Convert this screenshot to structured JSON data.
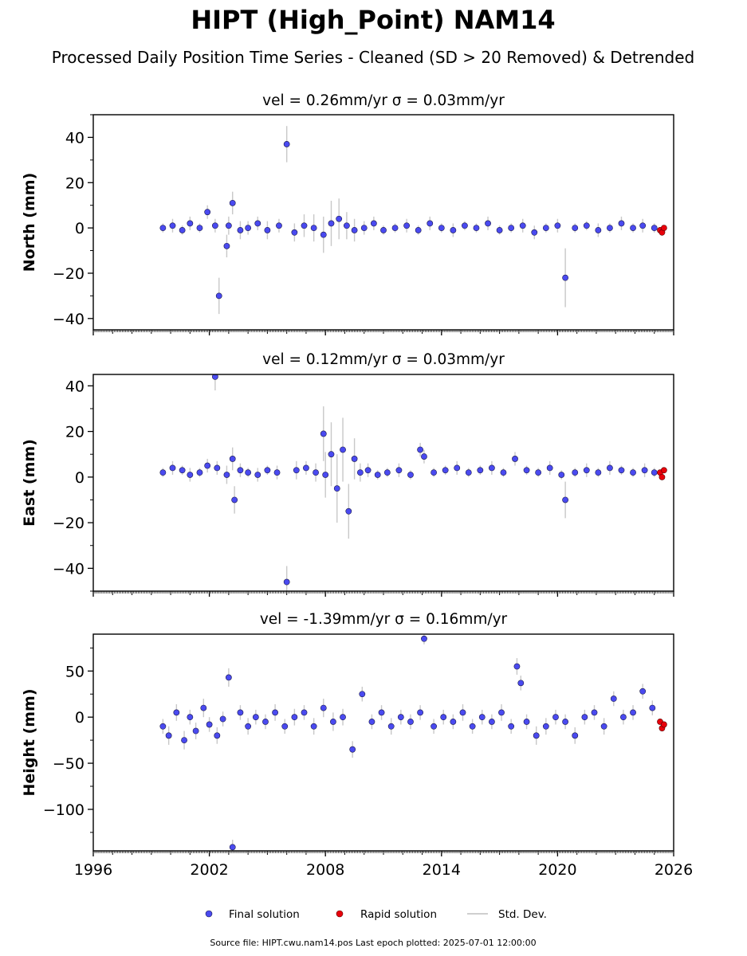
{
  "figure": {
    "title": "HIPT (High_Point) NAM14",
    "subtitle": "Processed Daily Position Time Series - Cleaned (SD > 20 Removed) & Detrended",
    "source_note": "Source file: HIPT.cwu.nam14.pos  Last epoch plotted: 2025-07-01 12:00:00"
  },
  "legend": {
    "final": "Final solution",
    "rapid": "Rapid solution",
    "std": "Std. Dev."
  },
  "colors": {
    "final": "#4a4af0",
    "rapid": "#e8000b",
    "std": "#c8c8c8",
    "axis": "#000000"
  },
  "chart_data": [
    {
      "type": "scatter",
      "title": "vel = 0.26mm/yr   σ = 0.03mm/yr",
      "xlabel": "",
      "ylabel": "North (mm)",
      "xlim": [
        1996,
        2026
      ],
      "ylim": [
        -45,
        50
      ],
      "yticks": [
        40,
        20,
        0,
        -20,
        -40
      ],
      "ytick_labels": [
        "40",
        "20",
        "0",
        "−20",
        "−40"
      ],
      "xticks": [
        1996,
        2002,
        2008,
        2014,
        2020,
        2026
      ],
      "xtick_labels": [],
      "series": [
        {
          "name": "Final solution",
          "kind": "final",
          "x": [
            1999.6,
            2000.1,
            2000.6,
            2001.0,
            2001.5,
            2001.9,
            2002.3,
            2002.5,
            2002.9,
            2003.0,
            2003.2,
            2003.6,
            2004.0,
            2004.5,
            2005.0,
            2005.6,
            2006.0,
            2006.4,
            2006.9,
            2007.4,
            2007.9,
            2008.3,
            2008.7,
            2009.1,
            2009.5,
            2010.0,
            2010.5,
            2011.0,
            2011.6,
            2012.2,
            2012.8,
            2013.4,
            2014.0,
            2014.6,
            2015.2,
            2015.8,
            2016.4,
            2017.0,
            2017.6,
            2018.2,
            2018.8,
            2019.4,
            2020.0,
            2020.4,
            2020.9,
            2021.5,
            2022.1,
            2022.7,
            2023.3,
            2023.9,
            2024.4,
            2025.0
          ],
          "y": [
            0,
            1,
            -1,
            2,
            0,
            7,
            1,
            -30,
            -8,
            1,
            11,
            -1,
            0,
            2,
            -1,
            1,
            37,
            -2,
            1,
            0,
            -3,
            2,
            4,
            1,
            -1,
            0,
            2,
            -1,
            0,
            1,
            -1,
            2,
            0,
            -1,
            1,
            0,
            2,
            -1,
            0,
            1,
            -2,
            0,
            1,
            -22,
            0,
            1,
            -1,
            0,
            2,
            0,
            1,
            0
          ],
          "sd": [
            2,
            3,
            2,
            3,
            2,
            3,
            3,
            8,
            5,
            4,
            5,
            4,
            3,
            3,
            4,
            3,
            8,
            4,
            5,
            6,
            8,
            10,
            9,
            6,
            5,
            3,
            3,
            2,
            2,
            3,
            2,
            3,
            2,
            3,
            2,
            2,
            3,
            2,
            2,
            3,
            3,
            2,
            3,
            13,
            2,
            2,
            3,
            2,
            3,
            2,
            3,
            2
          ]
        },
        {
          "name": "Rapid solution",
          "kind": "rapid",
          "x": [
            2025.3,
            2025.4,
            2025.5
          ],
          "y": [
            -1,
            -2,
            0
          ],
          "sd": [
            1,
            1,
            1
          ]
        }
      ]
    },
    {
      "type": "scatter",
      "title": "vel = 0.12mm/yr   σ = 0.03mm/yr",
      "xlabel": "",
      "ylabel": "East (mm)",
      "xlim": [
        1996,
        2026
      ],
      "ylim": [
        -50,
        45
      ],
      "yticks": [
        40,
        20,
        0,
        -20,
        -40
      ],
      "ytick_labels": [
        "40",
        "20",
        "0",
        "−20",
        "−40"
      ],
      "xticks": [
        1996,
        2002,
        2008,
        2014,
        2020,
        2026
      ],
      "xtick_labels": [],
      "series": [
        {
          "name": "Final solution",
          "kind": "final",
          "x": [
            1999.6,
            2000.1,
            2000.6,
            2001.0,
            2001.5,
            2001.9,
            2002.3,
            2002.4,
            2002.9,
            2003.2,
            2003.3,
            2003.6,
            2004.0,
            2004.5,
            2005.0,
            2005.5,
            2006.0,
            2006.5,
            2007.0,
            2007.5,
            2007.9,
            2008.0,
            2008.3,
            2008.6,
            2008.9,
            2009.2,
            2009.5,
            2009.8,
            2010.2,
            2010.7,
            2011.2,
            2011.8,
            2012.4,
            2012.9,
            2013.1,
            2013.6,
            2014.2,
            2014.8,
            2015.4,
            2016.0,
            2016.6,
            2017.2,
            2017.8,
            2018.4,
            2019.0,
            2019.6,
            2020.2,
            2020.4,
            2020.9,
            2021.5,
            2022.1,
            2022.7,
            2023.3,
            2023.9,
            2024.5,
            2025.0
          ],
          "y": [
            2,
            4,
            3,
            1,
            2,
            5,
            44,
            4,
            1,
            8,
            -10,
            3,
            2,
            1,
            3,
            2,
            -46,
            3,
            4,
            2,
            19,
            1,
            10,
            -5,
            12,
            -15,
            8,
            2,
            3,
            1,
            2,
            3,
            1,
            12,
            9,
            2,
            3,
            4,
            2,
            3,
            4,
            2,
            8,
            3,
            2,
            4,
            1,
            -10,
            2,
            3,
            2,
            4,
            3,
            2,
            3,
            2
          ],
          "sd": [
            2,
            3,
            2,
            3,
            2,
            3,
            6,
            3,
            4,
            5,
            6,
            3,
            2,
            3,
            2,
            3,
            7,
            4,
            3,
            4,
            12,
            10,
            14,
            15,
            14,
            12,
            9,
            4,
            3,
            2,
            2,
            3,
            2,
            3,
            3,
            2,
            2,
            3,
            2,
            2,
            3,
            2,
            3,
            2,
            2,
            3,
            2,
            8,
            2,
            3,
            2,
            3,
            2,
            2,
            3,
            2
          ]
        },
        {
          "name": "Rapid solution",
          "kind": "rapid",
          "x": [
            2025.3,
            2025.4,
            2025.5
          ],
          "y": [
            2,
            0,
            3
          ],
          "sd": [
            1,
            1,
            1
          ]
        }
      ]
    },
    {
      "type": "scatter",
      "title": "vel = -1.39mm/yr   σ = 0.16mm/yr",
      "xlabel": "",
      "ylabel": "Height (mm)",
      "xlim": [
        1996,
        2026
      ],
      "ylim": [
        -145,
        90
      ],
      "yticks": [
        50,
        0,
        -50,
        -100
      ],
      "ytick_labels": [
        "50",
        "0",
        "−50",
        "−100"
      ],
      "xticks": [
        1996,
        2002,
        2008,
        2014,
        2020,
        2026
      ],
      "xtick_labels": [
        "1996",
        "2002",
        "2008",
        "2014",
        "2020",
        "2026"
      ],
      "series": [
        {
          "name": "Final solution",
          "kind": "final",
          "x": [
            1999.6,
            1999.9,
            2000.3,
            2000.7,
            2001.0,
            2001.3,
            2001.7,
            2002.0,
            2002.4,
            2002.7,
            2003.0,
            2003.2,
            2003.6,
            2004.0,
            2004.4,
            2004.9,
            2005.4,
            2005.9,
            2006.4,
            2006.9,
            2007.4,
            2007.9,
            2008.4,
            2008.9,
            2009.4,
            2009.9,
            2010.4,
            2010.9,
            2011.4,
            2011.9,
            2012.4,
            2012.9,
            2013.1,
            2013.6,
            2014.1,
            2014.6,
            2015.1,
            2015.6,
            2016.1,
            2016.6,
            2017.1,
            2017.6,
            2017.9,
            2018.1,
            2018.4,
            2018.9,
            2019.4,
            2019.9,
            2020.4,
            2020.9,
            2021.4,
            2021.9,
            2022.4,
            2022.9,
            2023.4,
            2023.9,
            2024.4,
            2024.9
          ],
          "y": [
            -10,
            -20,
            5,
            -25,
            0,
            -15,
            10,
            -8,
            -20,
            -2,
            43,
            -141,
            5,
            -10,
            0,
            -5,
            5,
            -10,
            0,
            5,
            -10,
            10,
            -5,
            0,
            -35,
            25,
            -5,
            5,
            -10,
            0,
            -5,
            5,
            85,
            -10,
            0,
            -5,
            5,
            -10,
            0,
            -5,
            5,
            -10,
            55,
            37,
            -5,
            -20,
            -10,
            0,
            -5,
            -20,
            0,
            5,
            -10,
            20,
            0,
            5,
            28,
            10
          ],
          "sd": [
            8,
            10,
            9,
            10,
            8,
            9,
            10,
            8,
            9,
            8,
            10,
            8,
            8,
            9,
            8,
            8,
            9,
            8,
            9,
            8,
            9,
            10,
            10,
            9,
            9,
            8,
            8,
            8,
            9,
            8,
            8,
            8,
            6,
            8,
            8,
            8,
            9,
            8,
            8,
            8,
            9,
            8,
            9,
            8,
            8,
            10,
            9,
            8,
            8,
            9,
            8,
            8,
            9,
            8,
            8,
            8,
            8,
            8
          ]
        },
        {
          "name": "Rapid solution",
          "kind": "rapid",
          "x": [
            2025.3,
            2025.4,
            2025.5
          ],
          "y": [
            -5,
            -12,
            -8
          ],
          "sd": [
            2,
            2,
            2
          ]
        }
      ]
    }
  ]
}
